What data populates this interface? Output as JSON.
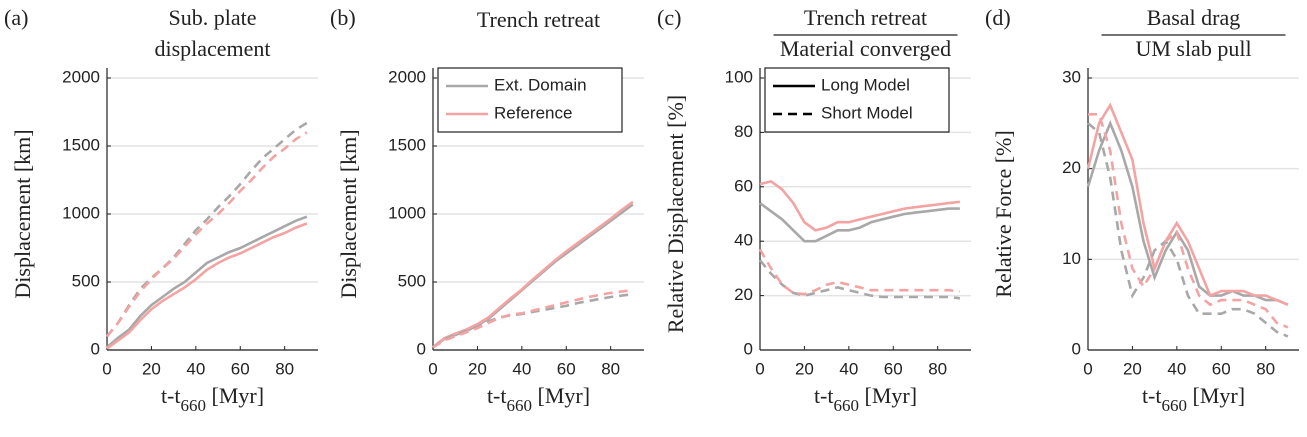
{
  "chart_data": [
    {
      "type": "line",
      "panel_label": "(a)",
      "title": [
        "Sub. plate",
        "displacement"
      ],
      "fraction": false,
      "y_label": "Displacement [km]",
      "x_label": [
        "t-t",
        "660",
        " [Myr]"
      ],
      "x": [
        0,
        5,
        10,
        15,
        20,
        25,
        30,
        35,
        40,
        45,
        50,
        55,
        60,
        65,
        70,
        75,
        80,
        85,
        90
      ],
      "xlim": [
        0,
        95
      ],
      "xticks": [
        0,
        20,
        40,
        60,
        80
      ],
      "ylim": [
        0,
        2000
      ],
      "yticks": [
        0,
        500,
        1000,
        1500,
        2000
      ],
      "grid": true,
      "series": [
        {
          "color": "#a8a8a8",
          "dash": false,
          "values": [
            20,
            90,
            150,
            250,
            330,
            390,
            450,
            500,
            570,
            640,
            680,
            720,
            750,
            790,
            830,
            870,
            910,
            950,
            980
          ]
        },
        {
          "color": "#f4a3a3",
          "dash": false,
          "values": [
            10,
            70,
            130,
            220,
            300,
            360,
            410,
            460,
            520,
            590,
            640,
            680,
            710,
            750,
            790,
            830,
            860,
            900,
            930
          ]
        },
        {
          "color": "#a8a8a8",
          "dash": true,
          "values": [
            100,
            200,
            330,
            450,
            530,
            600,
            680,
            780,
            880,
            960,
            1050,
            1130,
            1220,
            1320,
            1410,
            1480,
            1550,
            1620,
            1670
          ]
        },
        {
          "color": "#f4a3a3",
          "dash": true,
          "values": [
            100,
            200,
            320,
            430,
            520,
            600,
            670,
            760,
            850,
            930,
            1000,
            1080,
            1170,
            1250,
            1340,
            1420,
            1480,
            1550,
            1600
          ]
        }
      ]
    },
    {
      "type": "line",
      "panel_label": "(b)",
      "title": [
        "Trench retreat"
      ],
      "fraction": false,
      "y_label": "Displacement [km]",
      "x_label": [
        "t-t",
        "660",
        " [Myr]"
      ],
      "x": [
        0,
        5,
        10,
        15,
        20,
        25,
        30,
        35,
        40,
        45,
        50,
        55,
        60,
        65,
        70,
        75,
        80,
        85,
        90
      ],
      "xlim": [
        0,
        95
      ],
      "xticks": [
        0,
        20,
        40,
        60,
        80
      ],
      "ylim": [
        0,
        2000
      ],
      "yticks": [
        0,
        500,
        1000,
        1500,
        2000
      ],
      "grid": true,
      "legend": [
        {
          "name": "Ext. Domain",
          "color": "#a8a8a8",
          "dash": false
        },
        {
          "name": "Reference",
          "color": "#f4a3a3",
          "dash": false
        }
      ],
      "series": [
        {
          "color": "#a8a8a8",
          "dash": false,
          "values": [
            20,
            80,
            110,
            140,
            180,
            230,
            300,
            370,
            440,
            510,
            580,
            650,
            710,
            770,
            830,
            890,
            950,
            1010,
            1070
          ]
        },
        {
          "color": "#f4a3a3",
          "dash": false,
          "values": [
            20,
            85,
            120,
            150,
            190,
            240,
            310,
            380,
            445,
            520,
            590,
            660,
            725,
            785,
            845,
            905,
            965,
            1030,
            1090
          ]
        },
        {
          "color": "#a8a8a8",
          "dash": true,
          "values": [
            20,
            80,
            110,
            140,
            170,
            210,
            240,
            255,
            265,
            280,
            295,
            310,
            325,
            345,
            360,
            375,
            390,
            400,
            410
          ]
        },
        {
          "color": "#f4a3a3",
          "dash": true,
          "values": [
            20,
            70,
            100,
            130,
            160,
            200,
            235,
            260,
            270,
            290,
            310,
            330,
            350,
            370,
            390,
            405,
            420,
            430,
            440
          ]
        }
      ]
    },
    {
      "type": "line",
      "panel_label": "(c)",
      "title": [
        "Trench retreat",
        "Material converged"
      ],
      "fraction": true,
      "y_label": "Relative Displacement [%]",
      "x_label": [
        "t-t",
        "660",
        " [Myr]"
      ],
      "x": [
        0,
        5,
        10,
        15,
        20,
        25,
        30,
        35,
        40,
        45,
        50,
        55,
        60,
        65,
        70,
        75,
        80,
        85,
        90
      ],
      "xlim": [
        0,
        95
      ],
      "xticks": [
        0,
        20,
        40,
        60,
        80
      ],
      "ylim": [
        0,
        100
      ],
      "yticks": [
        0,
        20,
        40,
        60,
        80,
        100
      ],
      "grid": true,
      "legend": [
        {
          "name": "Long Model",
          "color": "#000000",
          "dash": false
        },
        {
          "name": "Short Model",
          "color": "#000000",
          "dash": true
        }
      ],
      "series": [
        {
          "color": "#a8a8a8",
          "dash": false,
          "values": [
            54,
            51,
            48,
            44,
            40,
            40,
            42,
            44,
            44,
            45,
            47,
            48,
            49,
            50,
            50.5,
            51,
            51.5,
            52,
            52
          ]
        },
        {
          "color": "#f4a3a3",
          "dash": false,
          "values": [
            61,
            62,
            59,
            54,
            47,
            44,
            45,
            47,
            47,
            48,
            49,
            50,
            51,
            52,
            52.5,
            53,
            53.5,
            54,
            54.5
          ]
        },
        {
          "color": "#a8a8a8",
          "dash": true,
          "values": [
            33,
            28,
            24,
            21,
            20,
            21,
            22,
            23,
            22,
            21,
            20,
            19.5,
            19.5,
            19.5,
            19.5,
            19.5,
            19.5,
            19.5,
            19
          ]
        },
        {
          "color": "#f4a3a3",
          "dash": true,
          "values": [
            37,
            30,
            24,
            21,
            20.5,
            22,
            24,
            25,
            24,
            23,
            22,
            22,
            22,
            22,
            22,
            22,
            22,
            22,
            21.5
          ]
        }
      ]
    },
    {
      "type": "line",
      "panel_label": "(d)",
      "title": [
        "Basal drag",
        "UM slab pull"
      ],
      "fraction": true,
      "y_label": "Relative Force [%]",
      "x_label": [
        "t-t",
        "660",
        " [Myr]"
      ],
      "x": [
        0,
        5,
        10,
        15,
        20,
        25,
        30,
        35,
        40,
        45,
        50,
        55,
        60,
        65,
        70,
        75,
        80,
        85,
        90
      ],
      "xlim": [
        0,
        95
      ],
      "xticks": [
        0,
        20,
        40,
        60,
        80
      ],
      "ylim": [
        0,
        30
      ],
      "yticks": [
        0,
        10,
        20,
        30
      ],
      "grid": true,
      "series": [
        {
          "color": "#a8a8a8",
          "dash": false,
          "values": [
            18,
            22,
            25,
            22,
            18,
            12,
            8,
            11,
            13,
            11,
            7,
            6,
            6,
            6.5,
            6,
            6,
            5.5,
            5.5,
            5
          ]
        },
        {
          "color": "#f4a3a3",
          "dash": false,
          "values": [
            20,
            25,
            27,
            24,
            21,
            14,
            9,
            12,
            14,
            12,
            9,
            6,
            6.5,
            6.5,
            6.5,
            6,
            6,
            5.5,
            5
          ]
        },
        {
          "color": "#a8a8a8",
          "dash": true,
          "values": [
            25,
            24,
            19,
            11,
            6,
            8,
            11,
            12,
            10,
            6,
            4,
            4,
            4,
            4.5,
            4.5,
            4,
            3,
            2,
            1.5
          ]
        },
        {
          "color": "#f4a3a3",
          "dash": true,
          "values": [
            26,
            26,
            22,
            14,
            9,
            7,
            9,
            12,
            13,
            9,
            6,
            5,
            5.5,
            5.5,
            5.5,
            5,
            4.5,
            3,
            2.5
          ]
        }
      ]
    }
  ]
}
